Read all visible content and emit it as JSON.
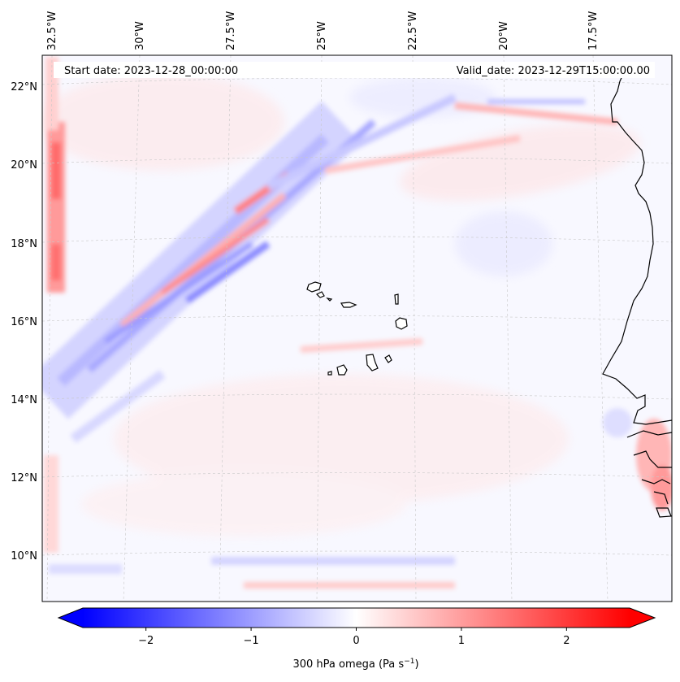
{
  "figure": {
    "start_label": "Start date: 2023-12-28_00:00:00",
    "valid_label": "Valid_date: 2023-12-29T15:00:00.00",
    "variable": "300 hPa omega",
    "units": "Pa s",
    "units_exponent": "−1"
  },
  "map": {
    "longitude_labels": [
      "32.5°W",
      "30°W",
      "27.5°W",
      "25°W",
      "22.5°W",
      "20°W",
      "17.5°W"
    ],
    "latitude_labels": [
      "22°N",
      "20°N",
      "18°N",
      "16°N",
      "14°N",
      "12°N",
      "10°N"
    ]
  },
  "colorbar": {
    "vmin": -2.6,
    "vmax": 2.6,
    "ticks": [
      -2,
      -1,
      0,
      1,
      2
    ],
    "tick_labels": [
      "−2",
      "−1",
      "0",
      "1",
      "2"
    ],
    "colormap": "bwr",
    "extend": "both",
    "colors": {
      "negative": "#0000ff",
      "zero": "#ffffff",
      "positive": "#ff0000"
    }
  }
}
